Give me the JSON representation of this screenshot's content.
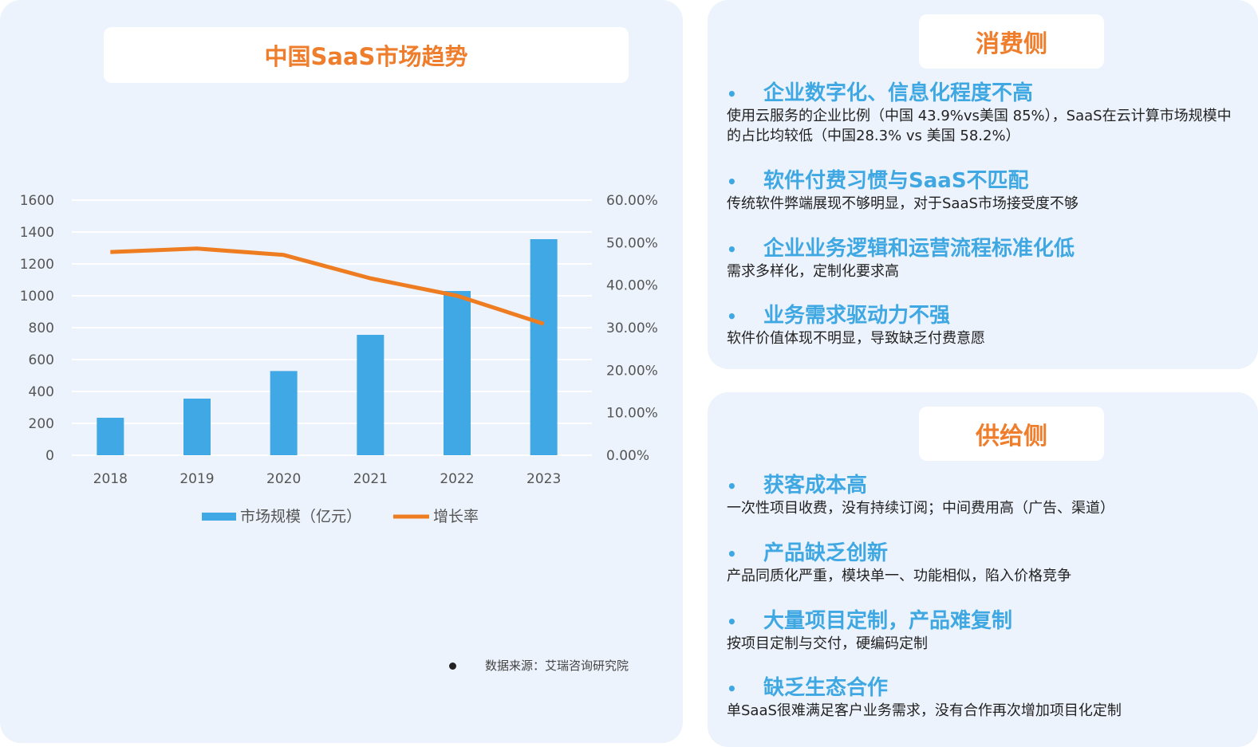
{
  "chart_data": {
    "type": "bar+line",
    "title": "中国SaaS市场趋势",
    "categories": [
      "2018",
      "2019",
      "2020",
      "2021",
      "2022",
      "2023"
    ],
    "series": [
      {
        "name": "市场规模（亿元）",
        "type": "bar",
        "axis": "left",
        "color": "#41a8e6",
        "values": [
          235,
          355,
          528,
          755,
          1030,
          1355
        ]
      },
      {
        "name": "增长率",
        "type": "line",
        "axis": "right",
        "color": "#ee7d22",
        "values": [
          47.8,
          48.6,
          47.1,
          41.6,
          37.5,
          30.9
        ]
      }
    ],
    "y_left": {
      "range": [
        0,
        1600
      ],
      "ticks": [
        "0",
        "200",
        "400",
        "600",
        "800",
        "1000",
        "1200",
        "1400",
        "1600"
      ]
    },
    "y_right": {
      "range": [
        0,
        60
      ],
      "ticks": [
        "0.00%",
        "10.00%",
        "20.00%",
        "30.00%",
        "40.00%",
        "50.00%",
        "60.00%"
      ]
    },
    "grid": true,
    "legend": "bottom",
    "source": "数据来源：艾瑞咨询研究院"
  },
  "consumer": {
    "title": "消费侧",
    "items": [
      {
        "heading": "企业数字化、信息化程度不高",
        "desc": "使用云服务的企业比例（中国 43.9%vs美国 85%），SaaS在云计算市场规模中的占比均较低（中国28.3% vs 美国 58.2%）"
      },
      {
        "heading": "软件付费习惯与SaaS不匹配",
        "desc": "传统软件弊端展现不够明显，对于SaaS市场接受度不够"
      },
      {
        "heading": "企业业务逻辑和运营流程标准化低",
        "desc": "需求多样化，定制化要求高"
      },
      {
        "heading": "业务需求驱动力不强",
        "desc": "软件价值体现不明显，导致缺乏付费意愿"
      }
    ]
  },
  "supply": {
    "title": "供给侧",
    "items": [
      {
        "heading": "获客成本高",
        "desc": "一次性项目收费，没有持续订阅；中间费用高（广告、渠道）"
      },
      {
        "heading": "产品缺乏创新",
        "desc": "产品同质化严重，模块单一、功能相似，陷入价格竞争"
      },
      {
        "heading": "大量项目定制，产品难复制",
        "desc": "按项目定制与交付，硬编码定制"
      },
      {
        "heading": "缺乏生态合作",
        "desc": "单SaaS很难满足客户业务需求，没有合作再次增加项目化定制"
      }
    ]
  },
  "bullet": "•"
}
